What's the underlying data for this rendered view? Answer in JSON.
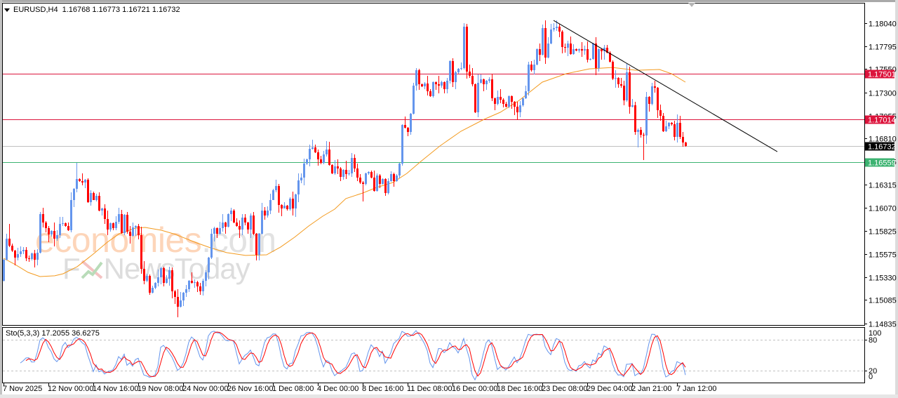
{
  "header": {
    "symbol_timeframe": "EURUSD,H4",
    "open": "1.16768",
    "high": "1.16773",
    "low": "1.16721",
    "close": "1.16732",
    "menu_icon": "triangle-down-icon"
  },
  "indicator_label": {
    "name": "Sto(5,3,3)",
    "main_value": "17.2055",
    "signal_value": "36.6275"
  },
  "watermark": {
    "brand1_main": "economies",
    "brand1_suffix": ".com",
    "brand2_f": "F",
    "brand2_rest": "NewsToday"
  },
  "colors": {
    "bull": "#6495ED",
    "bear": "#FF0000",
    "moving_average": "#F39A1E",
    "resistance": "#DC143C",
    "support": "#3CB371",
    "bid_line": "#C0C0C0",
    "trendline": "#000000",
    "sto_main": "#6495ED",
    "sto_signal": "#FF0000",
    "grid_text": "#000000"
  },
  "chart_data": {
    "type": "candlestick",
    "title": "EURUSD,H4",
    "symbol": "EURUSD",
    "timeframe": "H4",
    "last_bar": {
      "open": 1.16768,
      "high": 1.16773,
      "low": 1.16721,
      "close": 1.16732
    },
    "price_range": [
      1.14815,
      1.18254
    ],
    "price_ticks": [
      "1.18040",
      "1.17795",
      "1.17550",
      "1.17300",
      "1.17055",
      "1.16810",
      "1.16565",
      "1.16315",
      "1.16070",
      "1.15825",
      "1.15575",
      "1.15330",
      "1.15085",
      "1.14835"
    ],
    "time_labels": [
      {
        "index": 0,
        "text": "7 Nov 2025"
      },
      {
        "index": 16,
        "text": "12 Nov 00:00"
      },
      {
        "index": 32,
        "text": "14 Nov 16:00"
      },
      {
        "index": 48,
        "text": "19 Nov 08:00"
      },
      {
        "index": 64,
        "text": "24 Nov 00:00"
      },
      {
        "index": 80,
        "text": "26 Nov 16:00"
      },
      {
        "index": 96,
        "text": "1 Dec 08:00"
      },
      {
        "index": 112,
        "text": "4 Dec 00:00"
      },
      {
        "index": 128,
        "text": "8 Dec 16:00"
      },
      {
        "index": 144,
        "text": "11 Dec 08:00"
      },
      {
        "index": 160,
        "text": "16 Dec 00:00"
      },
      {
        "index": 176,
        "text": "18 Dec 16:00"
      },
      {
        "index": 192,
        "text": "23 Dec 08:00"
      },
      {
        "index": 208,
        "text": "29 Dec 04:00"
      },
      {
        "index": 224,
        "text": "2 Jan 21:00"
      },
      {
        "index": 240,
        "text": "7 Jan 12:00"
      }
    ],
    "first_open": 1.15291,
    "closes": [
      1.15516,
      1.15741,
      1.15666,
      1.15613,
      1.15538,
      1.15576,
      1.15606,
      1.15621,
      1.15531,
      1.15523,
      1.15583,
      1.15516,
      1.15591,
      1.16003,
      1.15913,
      1.15853,
      1.15786,
      1.15823,
      1.15741,
      1.15778,
      1.15898,
      1.15905,
      1.15875,
      1.1583,
      1.16153,
      1.16272,
      1.16377,
      1.16355,
      1.1634,
      1.1637,
      1.1613,
      1.16227,
      1.16153,
      1.16198,
      1.1604,
      1.16063,
      1.1595,
      1.15838,
      1.15905,
      1.15853,
      1.1592,
      1.16003,
      1.15801,
      1.15995,
      1.15816,
      1.15771,
      1.1586,
      1.15875,
      1.15778,
      1.15419,
      1.15291,
      1.15344,
      1.15164,
      1.15216,
      1.15269,
      1.15329,
      1.15426,
      1.15269,
      1.15314,
      1.15404,
      1.15179,
      1.15119,
      1.15014,
      1.15081,
      1.15164,
      1.15201,
      1.15291,
      1.15269,
      1.15276,
      1.15231,
      1.15179,
      1.15291,
      1.15381,
      1.15538,
      1.15793,
      1.15853,
      1.15793,
      1.15853,
      1.15913,
      1.15868,
      1.16003,
      1.1604,
      1.15913,
      1.15875,
      1.15838,
      1.15965,
      1.15913,
      1.15838,
      1.15988,
      1.15793,
      1.15568,
      1.15793,
      1.1604,
      1.15988,
      1.1604,
      1.16153,
      1.16257,
      1.16302,
      1.161,
      1.16063,
      1.16093,
      1.16055,
      1.16168,
      1.16063,
      1.16212,
      1.16362,
      1.16392,
      1.16542,
      1.16587,
      1.16699,
      1.16714,
      1.16662,
      1.16587,
      1.1655,
      1.16639,
      1.16692,
      1.16527,
      1.16437,
      1.16512,
      1.1649,
      1.164,
      1.16475,
      1.1643,
      1.16437,
      1.16602,
      1.1649,
      1.16392,
      1.1634,
      1.16325,
      1.16437,
      1.16452,
      1.16392,
      1.1625,
      1.16415,
      1.16325,
      1.16377,
      1.16227,
      1.16355,
      1.1643,
      1.16355,
      1.16415,
      1.16542,
      1.16954,
      1.16924,
      1.16879,
      1.17074,
      1.17373,
      1.17538,
      1.17388,
      1.17366,
      1.17395,
      1.17313,
      1.17261,
      1.17411,
      1.17388,
      1.17373,
      1.17411,
      1.17336,
      1.17426,
      1.17636,
      1.17411,
      1.17516,
      1.17553,
      1.17561,
      1.18002,
      1.17523,
      1.17478,
      1.17388,
      1.17089,
      1.17403,
      1.17441,
      1.17388,
      1.17426,
      1.17441,
      1.17239,
      1.17179,
      1.17254,
      1.17224,
      1.17179,
      1.17149,
      1.17261,
      1.17201,
      1.17149,
      1.17089,
      1.17164,
      1.17239,
      1.17313,
      1.17598,
      1.17538,
      1.17598,
      1.17763,
      1.17703,
      1.17988,
      1.17673,
      1.17823,
      1.17973,
      1.17988,
      1.18002,
      1.1795,
      1.17785,
      1.17778,
      1.17823,
      1.1771,
      1.17763,
      1.17748,
      1.17763,
      1.17748,
      1.17763,
      1.17651,
      1.17658,
      1.17823,
      1.17561,
      1.17763,
      1.1774,
      1.17778,
      1.17725,
      1.17628,
      1.17448,
      1.17456,
      1.17388,
      1.17373,
      1.17216,
      1.17516,
      1.17149,
      1.17164,
      1.16879,
      1.16902,
      1.16849,
      1.16842,
      1.17254,
      1.17179,
      1.17366,
      1.17351,
      1.17111,
      1.17051,
      1.16887,
      1.16939,
      1.16976,
      1.16961,
      1.16827,
      1.16976,
      1.16827,
      1.16768,
      1.16732
    ],
    "wick_overrides": {
      "2": [
        1.15898,
        null
      ],
      "26": [
        1.1655,
        null
      ],
      "62": [
        null,
        1.14902
      ],
      "128": [
        null,
        1.16137
      ],
      "164": [
        1.1804,
        null
      ],
      "197": [
        1.1807,
        null
      ],
      "211": [
        1.1789,
        1.17486
      ],
      "226": [
        null,
        1.16714
      ],
      "228": [
        null,
        1.16579
      ],
      "232": [
        1.17426,
        null
      ]
    },
    "moving_average": {
      "points": [
        [
          0,
          1.15531
        ],
        [
          3.75,
          1.15471
        ],
        [
          8.75,
          1.15381
        ],
        [
          13,
          1.15336
        ],
        [
          18.25,
          1.15344
        ],
        [
          21.25,
          1.15366
        ],
        [
          26.25,
          1.15441
        ],
        [
          32,
          1.15576
        ],
        [
          37,
          1.15703
        ],
        [
          41.25,
          1.15793
        ],
        [
          47,
          1.15853
        ],
        [
          50.5,
          1.1586
        ],
        [
          56.25,
          1.1583
        ],
        [
          61.25,
          1.15786
        ],
        [
          68.75,
          1.15696
        ],
        [
          73.75,
          1.15643
        ],
        [
          79.5,
          1.15591
        ],
        [
          86.25,
          1.15561
        ],
        [
          93.75,
          1.15568
        ],
        [
          98.75,
          1.15651
        ],
        [
          103.75,
          1.15756
        ],
        [
          108.75,
          1.15875
        ],
        [
          113.75,
          1.1598
        ],
        [
          118,
          1.16055
        ],
        [
          122,
          1.16168
        ],
        [
          128,
          1.16227
        ],
        [
          133,
          1.16287
        ],
        [
          138.75,
          1.1634
        ],
        [
          143.75,
          1.16437
        ],
        [
          148.75,
          1.16565
        ],
        [
          155.5,
          1.16729
        ],
        [
          163,
          1.16887
        ],
        [
          171.25,
          1.17014
        ],
        [
          177,
          1.17089
        ],
        [
          183.75,
          1.17216
        ],
        [
          192,
          1.17411
        ],
        [
          200.5,
          1.17501
        ],
        [
          208.75,
          1.17553
        ],
        [
          217,
          1.17568
        ],
        [
          225.5,
          1.17538
        ],
        [
          233.75,
          1.17546
        ],
        [
          238,
          1.17501
        ],
        [
          243,
          1.17411
        ]
      ]
    },
    "trendline": {
      "points": [
        [
          196,
          1.1807
        ],
        [
          275.75,
          1.16669
        ]
      ]
    },
    "levels": [
      {
        "price": 1.17501,
        "label": "1.17501",
        "kind": "resistance"
      },
      {
        "price": 1.17014,
        "label": "1.17014",
        "kind": "resistance"
      },
      {
        "price": 1.16732,
        "label": "1.16732",
        "kind": "bid"
      },
      {
        "price": 1.16559,
        "label": "1.16559",
        "kind": "support"
      }
    ],
    "stochastic": {
      "name": "Sto",
      "k_period": 5,
      "d_period": 3,
      "slowing": 3,
      "main_last": 17.2055,
      "signal_last": 36.6275,
      "levels": [
        {
          "value": 100,
          "label": "100",
          "dashed": false
        },
        {
          "value": 80,
          "label": "80",
          "dashed": true
        },
        {
          "value": 20,
          "label": "20",
          "dashed": true
        },
        {
          "value": 0,
          "label": "0",
          "dashed": false
        }
      ]
    }
  }
}
